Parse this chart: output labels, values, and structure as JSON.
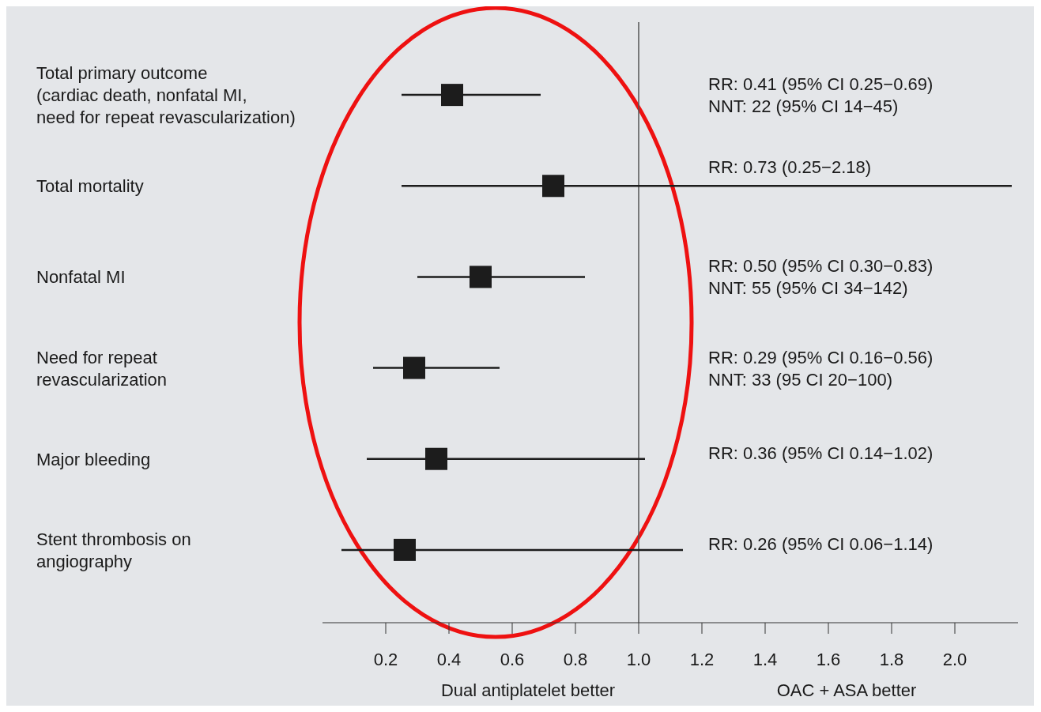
{
  "chart_data": {
    "type": "scatter",
    "orientation": "horizontal",
    "marker": "square",
    "categories": [
      "Total primary outcome\n(cardiac death, nonfatal MI,\nneed for repeat revascularization)",
      "Total mortality",
      "Nonfatal MI",
      "Need for repeat\nrevascularization",
      "Major bleeding",
      "Stent thrombosis on\nangiography"
    ],
    "values": [
      0.41,
      0.73,
      0.5,
      0.29,
      0.36,
      0.26
    ],
    "errors": [
      [
        0.25,
        0.69
      ],
      [
        0.25,
        2.18
      ],
      [
        0.3,
        0.83
      ],
      [
        0.16,
        0.56
      ],
      [
        0.14,
        1.02
      ],
      [
        0.06,
        1.14
      ]
    ],
    "color": "#1c1c1c",
    "xlim": [
      0,
      2.2
    ],
    "xticks": [
      0.2,
      0.4,
      0.6,
      0.8,
      {
        "value": 1.0,
        "label": "1.0"
      },
      1.2,
      1.4,
      1.6,
      1.8,
      {
        "value": 2.0,
        "label": "2.0"
      }
    ],
    "ref_lines": [
      {
        "axis": "x",
        "value": 1.0,
        "color": "#555555"
      }
    ],
    "annotations": [
      "RR: 0.41 (95% CI 0.25−0.69)\nNNT: 22 (95% CI 14−45)",
      "RR: 0.73 (0.25−2.18)",
      "RR: 0.50 (95% CI 0.30−0.83)\nNNT: 55 (95% CI 34−142)",
      "RR: 0.29 (95% CI 0.16−0.56)\nNNT: 33 (95 CI 20−100)",
      "RR: 0.36 (95% CI 0.14−1.02)",
      "RR: 0.26 (95% CI 0.06−1.14)",
      "Dual antiplatelet better",
      "OAC + ASA better"
    ]
  }
}
